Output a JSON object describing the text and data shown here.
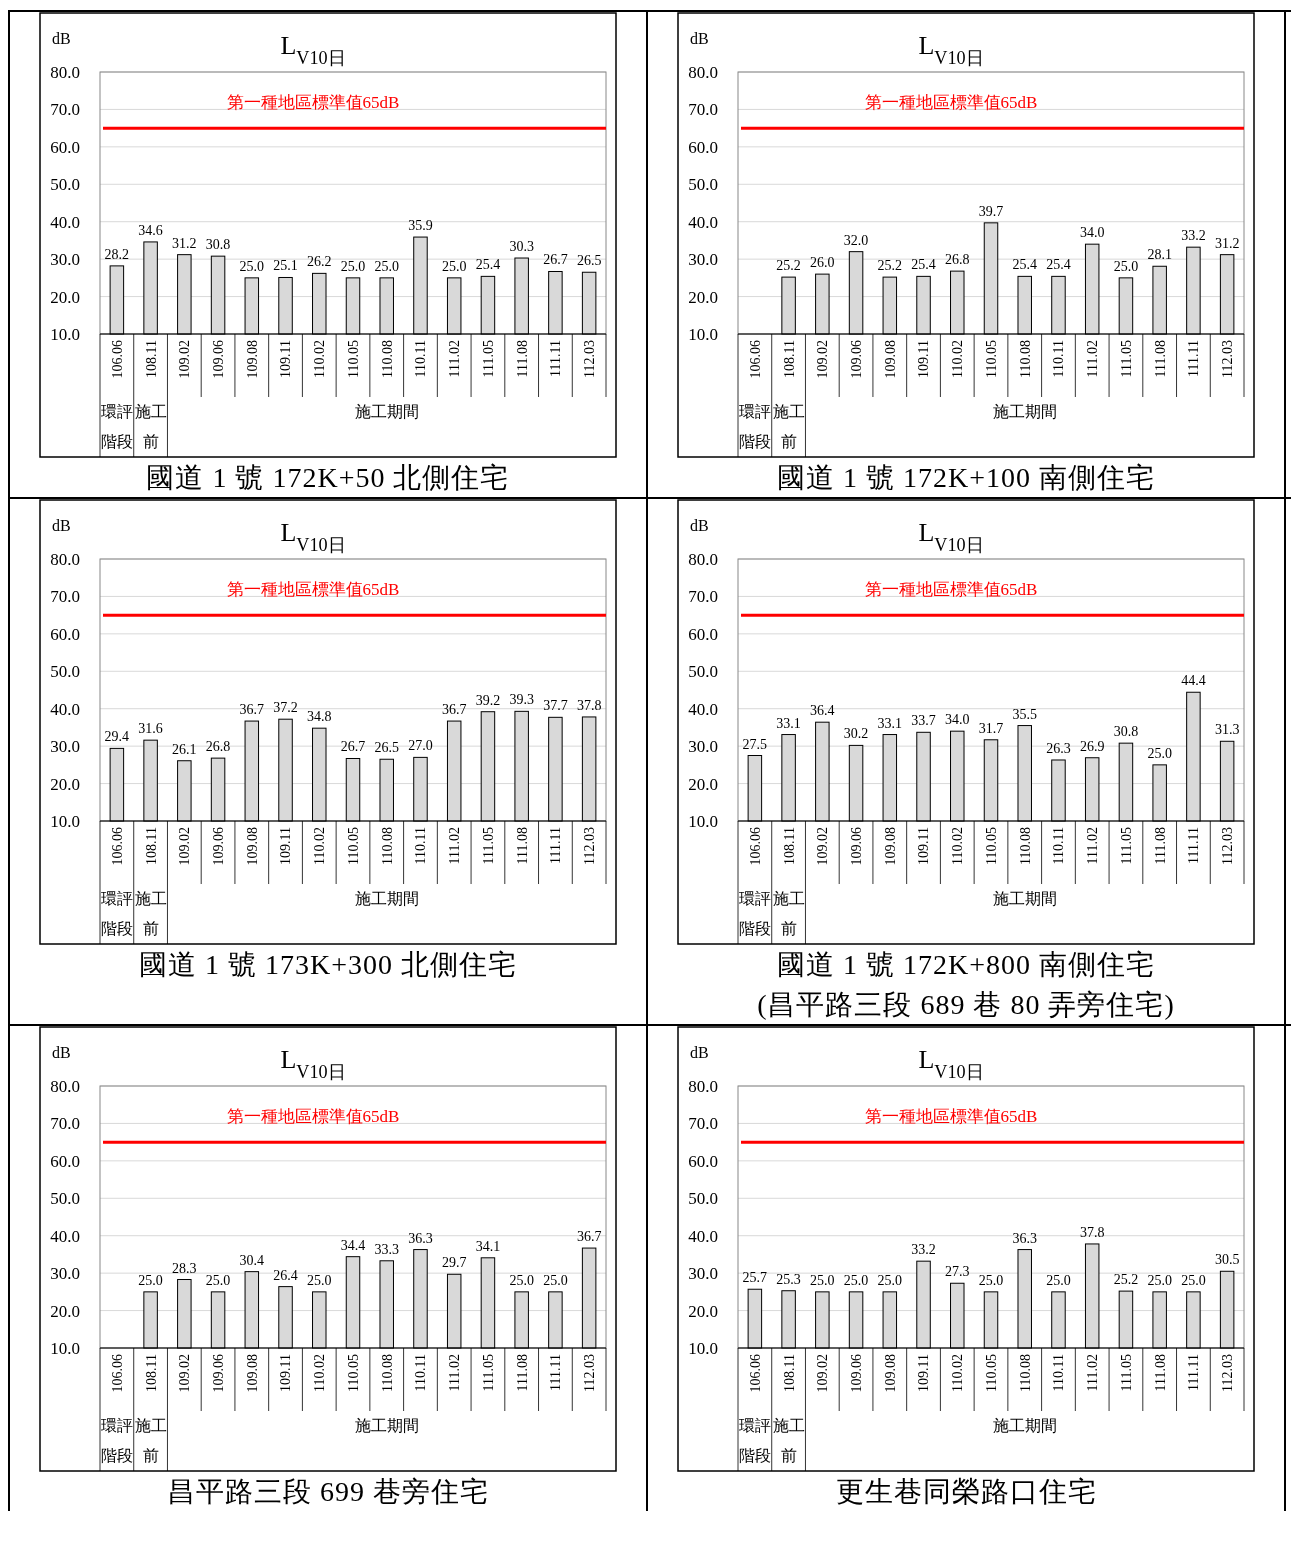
{
  "chart_data": [
    {
      "type": "bar",
      "title": "L$_{V10日}$",
      "ylabel": "dB",
      "subtitle": "國道 1 號 172K+50 北側住宅",
      "categories": [
        "106.06",
        "108.11",
        "109.02",
        "109.06",
        "109.08",
        "109.11",
        "110.02",
        "110.05",
        "110.08",
        "110.11",
        "111.02",
        "111.05",
        "111.08",
        "111.11",
        "112.03"
      ],
      "values": [
        28.2,
        34.6,
        31.2,
        30.8,
        25.0,
        25.1,
        26.2,
        25.0,
        25.0,
        35.9,
        25.0,
        25.4,
        30.3,
        26.7,
        26.5
      ],
      "value_labels": [
        "28.2",
        "34.6",
        "31.2",
        "30.8",
        "25.0",
        "25.1",
        "26.2",
        "25.0",
        "25.0",
        "35.9",
        "25.0",
        "25.4",
        "30.3",
        "26.7",
        "26.5"
      ],
      "color": "#d9d9d9",
      "ylim": [
        10,
        80
      ],
      "yticks": [
        {
          "value": 10,
          "label": "10.0"
        },
        {
          "value": 20,
          "label": "20.0"
        },
        {
          "value": 30,
          "label": "30.0"
        },
        {
          "value": 40,
          "label": "40.0"
        },
        {
          "value": 50,
          "label": "50.0"
        },
        {
          "value": 60,
          "label": "60.0"
        },
        {
          "value": 70,
          "label": "70.0"
        },
        {
          "value": 80,
          "label": "80.0"
        }
      ],
      "grid": "y",
      "ref_lines": [
        {
          "axis": "y",
          "value": 65,
          "label": "第一種地區標準值65dB",
          "color": "#ff0000"
        }
      ],
      "annotations": [
        "環評階段",
        "施工前",
        "施工期間"
      ]
    },
    {
      "type": "bar",
      "title": "L$_{V10日}$",
      "ylabel": "dB",
      "subtitle": "國道 1 號 172K+100 南側住宅",
      "categories": [
        "106.06",
        "108.11",
        "109.02",
        "109.06",
        "109.08",
        "109.11",
        "110.02",
        "110.05",
        "110.08",
        "110.11",
        "111.02",
        "111.05",
        "111.08",
        "111.11",
        "112.03"
      ],
      "values": [
        null,
        25.2,
        26.0,
        32.0,
        25.2,
        25.4,
        26.8,
        39.7,
        25.4,
        25.4,
        34.0,
        25.0,
        28.1,
        33.2,
        31.2
      ],
      "value_labels": [
        null,
        "25.2",
        "26.0",
        "32.0",
        "25.2",
        "25.4",
        "26.8",
        "39.7",
        "25.4",
        "25.4",
        "34.0",
        "25.0",
        "28.1",
        "33.2",
        "31.2"
      ],
      "color": "#d9d9d9",
      "ylim": [
        10,
        80
      ],
      "yticks": [
        {
          "value": 10,
          "label": "10.0"
        },
        {
          "value": 20,
          "label": "20.0"
        },
        {
          "value": 30,
          "label": "30.0"
        },
        {
          "value": 40,
          "label": "40.0"
        },
        {
          "value": 50,
          "label": "50.0"
        },
        {
          "value": 60,
          "label": "60.0"
        },
        {
          "value": 70,
          "label": "70.0"
        },
        {
          "value": 80,
          "label": "80.0"
        }
      ],
      "grid": "y",
      "ref_lines": [
        {
          "axis": "y",
          "value": 65,
          "label": "第一種地區標準值65dB",
          "color": "#ff0000"
        }
      ],
      "annotations": [
        "環評階段",
        "施工前",
        "施工期間"
      ]
    },
    {
      "type": "bar",
      "title": "L$_{V10日}$",
      "ylabel": "dB",
      "subtitle": "國道 1 號 173K+300 北側住宅",
      "categories": [
        "106.06",
        "108.11",
        "109.02",
        "109.06",
        "109.08",
        "109.11",
        "110.02",
        "110.05",
        "110.08",
        "110.11",
        "111.02",
        "111.05",
        "111.08",
        "111.11",
        "112.03"
      ],
      "values": [
        29.4,
        31.6,
        26.1,
        26.8,
        36.7,
        37.2,
        34.8,
        26.7,
        26.5,
        27.0,
        36.7,
        39.2,
        39.3,
        37.7,
        37.8
      ],
      "value_labels": [
        "29.4",
        "31.6",
        "26.1",
        "26.8",
        "36.7",
        "37.2",
        "34.8",
        "26.7",
        "26.5",
        "27.0",
        "36.7",
        "39.2",
        "39.3",
        "37.7",
        "37.8"
      ],
      "color": "#d9d9d9",
      "ylim": [
        10,
        80
      ],
      "yticks": [
        {
          "value": 10,
          "label": "10.0"
        },
        {
          "value": 20,
          "label": "20.0"
        },
        {
          "value": 30,
          "label": "30.0"
        },
        {
          "value": 40,
          "label": "40.0"
        },
        {
          "value": 50,
          "label": "50.0"
        },
        {
          "value": 60,
          "label": "60.0"
        },
        {
          "value": 70,
          "label": "70.0"
        },
        {
          "value": 80,
          "label": "80.0"
        }
      ],
      "grid": "y",
      "ref_lines": [
        {
          "axis": "y",
          "value": 65,
          "label": "第一種地區標準值65dB",
          "color": "#ff0000"
        }
      ],
      "annotations": [
        "環評階段",
        "施工前",
        "施工期間"
      ]
    },
    {
      "type": "bar",
      "title": "L$_{V10日}$",
      "ylabel": "dB",
      "subtitle": "國道 1 號 172K+800 南側住宅\n(昌平路三段 689 巷 80 弄旁住宅)",
      "categories": [
        "106.06",
        "108.11",
        "109.02",
        "109.06",
        "109.08",
        "109.11",
        "110.02",
        "110.05",
        "110.08",
        "110.11",
        "111.02",
        "111.05",
        "111.08",
        "111.11",
        "112.03"
      ],
      "values": [
        27.5,
        33.1,
        36.4,
        30.2,
        33.1,
        33.7,
        34.0,
        31.7,
        35.5,
        26.3,
        26.9,
        30.8,
        25.0,
        44.4,
        31.3
      ],
      "value_labels": [
        "27.5",
        "33.1",
        "36.4",
        "30.2",
        "33.1",
        "33.7",
        "34.0",
        "31.7",
        "35.5",
        "26.3",
        "26.9",
        "30.8",
        "25.0",
        "44.4",
        "31.3"
      ],
      "color": "#d9d9d9",
      "ylim": [
        10,
        80
      ],
      "yticks": [
        {
          "value": 10,
          "label": "10.0"
        },
        {
          "value": 20,
          "label": "20.0"
        },
        {
          "value": 30,
          "label": "30.0"
        },
        {
          "value": 40,
          "label": "40.0"
        },
        {
          "value": 50,
          "label": "50.0"
        },
        {
          "value": 60,
          "label": "60.0"
        },
        {
          "value": 70,
          "label": "70.0"
        },
        {
          "value": 80,
          "label": "80.0"
        }
      ],
      "grid": "y",
      "ref_lines": [
        {
          "axis": "y",
          "value": 65,
          "label": "第一種地區標準值65dB",
          "color": "#ff0000"
        }
      ],
      "annotations": [
        "環評階段",
        "施工前",
        "施工期間"
      ]
    },
    {
      "type": "bar",
      "title": "L$_{V10日}$",
      "ylabel": "dB",
      "subtitle": "昌平路三段 699 巷旁住宅",
      "categories": [
        "106.06",
        "108.11",
        "109.02",
        "109.06",
        "109.08",
        "109.11",
        "110.02",
        "110.05",
        "110.08",
        "110.11",
        "111.02",
        "111.05",
        "111.08",
        "111.11",
        "112.03"
      ],
      "values": [
        null,
        25.0,
        28.3,
        25.0,
        30.4,
        26.4,
        25.0,
        34.4,
        33.3,
        36.3,
        29.7,
        34.1,
        25.0,
        25.0,
        36.7
      ],
      "value_labels": [
        null,
        "25.0",
        "28.3",
        "25.0",
        "30.4",
        "26.4",
        "25.0",
        "34.4",
        "33.3",
        "36.3",
        "29.7",
        "34.1",
        "25.0",
        "25.0",
        "36.7"
      ],
      "color": "#d9d9d9",
      "ylim": [
        10,
        80
      ],
      "yticks": [
        {
          "value": 10,
          "label": "10.0"
        },
        {
          "value": 20,
          "label": "20.0"
        },
        {
          "value": 30,
          "label": "30.0"
        },
        {
          "value": 40,
          "label": "40.0"
        },
        {
          "value": 50,
          "label": "50.0"
        },
        {
          "value": 60,
          "label": "60.0"
        },
        {
          "value": 70,
          "label": "70.0"
        },
        {
          "value": 80,
          "label": "80.0"
        }
      ],
      "grid": "y",
      "ref_lines": [
        {
          "axis": "y",
          "value": 65,
          "label": "第一種地區標準值65dB",
          "color": "#ff0000"
        }
      ],
      "annotations": [
        "環評階段",
        "施工前",
        "施工期間"
      ]
    },
    {
      "type": "bar",
      "title": "L$_{V10日}$",
      "ylabel": "dB",
      "subtitle": "更生巷同榮路口住宅",
      "categories": [
        "106.06",
        "108.11",
        "109.02",
        "109.06",
        "109.08",
        "109.11",
        "110.02",
        "110.05",
        "110.08",
        "110.11",
        "111.02",
        "111.05",
        "111.08",
        "111.11",
        "112.03"
      ],
      "values": [
        25.7,
        25.3,
        25.0,
        25.0,
        25.0,
        33.2,
        27.3,
        25.0,
        36.3,
        25.0,
        37.8,
        25.2,
        25.0,
        25.0,
        30.5
      ],
      "value_labels": [
        "25.7",
        "25.3",
        "25.0",
        "25.0",
        "25.0",
        "33.2",
        "27.3",
        "25.0",
        "36.3",
        "25.0",
        "37.8",
        "25.2",
        "25.0",
        "25.0",
        "30.5"
      ],
      "color": "#d9d9d9",
      "ylim": [
        10,
        80
      ],
      "yticks": [
        {
          "value": 10,
          "label": "10.0"
        },
        {
          "value": 20,
          "label": "20.0"
        },
        {
          "value": 30,
          "label": "30.0"
        },
        {
          "value": 40,
          "label": "40.0"
        },
        {
          "value": 50,
          "label": "50.0"
        },
        {
          "value": 60,
          "label": "60.0"
        },
        {
          "value": 70,
          "label": "70.0"
        },
        {
          "value": 80,
          "label": "80.0"
        }
      ],
      "grid": "y",
      "ref_lines": [
        {
          "axis": "y",
          "value": 65,
          "label": "第一種地區標準值65dB",
          "color": "#ff0000"
        }
      ],
      "annotations": [
        "環評階段",
        "施工前",
        "施工期間"
      ]
    }
  ]
}
